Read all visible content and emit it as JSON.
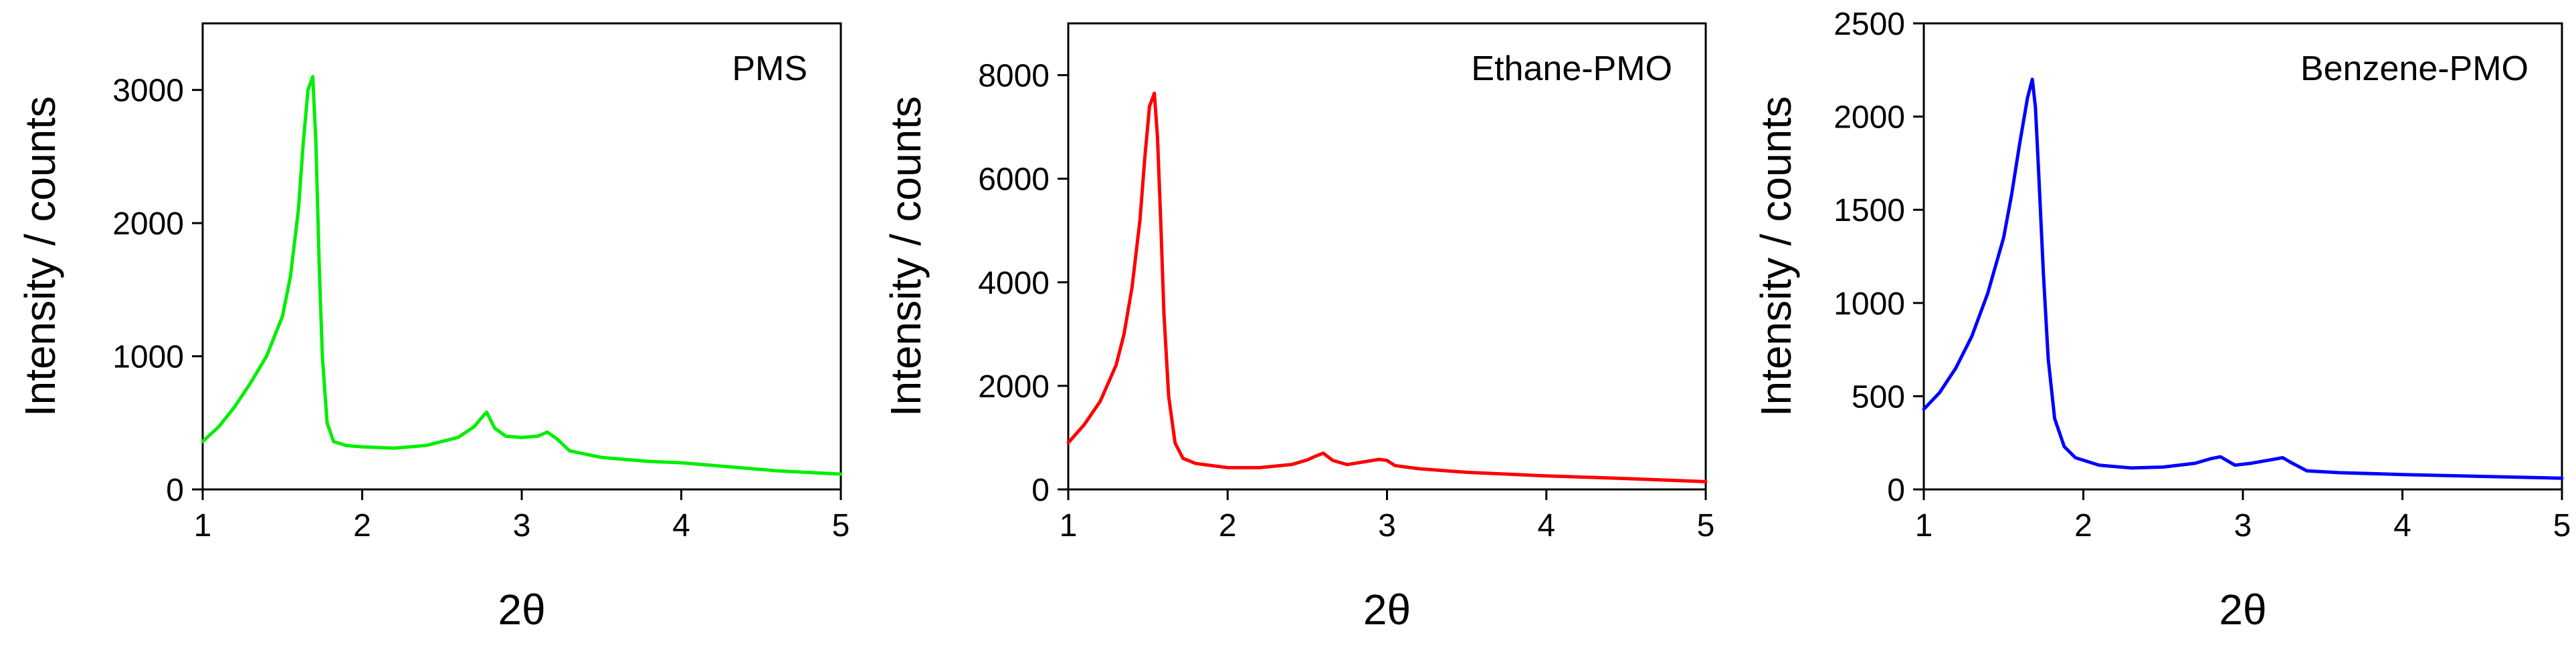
{
  "chart_data": [
    {
      "type": "line",
      "title": "",
      "xlabel": "2θ",
      "ylabel": "Intensity / counts",
      "xlim": [
        1,
        5
      ],
      "ylim": [
        0,
        3500
      ],
      "xticks": [
        1,
        2,
        3,
        4,
        5
      ],
      "yticks": [
        0,
        1000,
        2000,
        3000
      ],
      "grid": false,
      "annotation": "PMS",
      "color": "#00ee00",
      "series": [
        {
          "x": [
            1.0,
            1.1,
            1.2,
            1.3,
            1.4,
            1.5,
            1.55,
            1.6,
            1.63,
            1.66,
            1.69,
            1.71,
            1.73,
            1.75,
            1.78,
            1.82,
            1.9,
            2.0,
            2.2,
            2.4,
            2.6,
            2.7,
            2.75,
            2.78,
            2.83,
            2.9,
            3.0,
            3.1,
            3.16,
            3.22,
            3.3,
            3.5,
            3.8,
            4.0,
            4.3,
            4.6,
            5.0
          ],
          "y": [
            360,
            470,
            620,
            800,
            1000,
            1300,
            1600,
            2100,
            2600,
            3000,
            3100,
            2600,
            1700,
            1000,
            500,
            360,
            330,
            320,
            310,
            330,
            390,
            470,
            540,
            580,
            460,
            400,
            390,
            400,
            430,
            380,
            290,
            240,
            210,
            200,
            170,
            140,
            115
          ]
        }
      ]
    },
    {
      "type": "line",
      "title": "",
      "xlabel": "2θ",
      "ylabel": "Intensity / counts",
      "xlim": [
        1,
        5
      ],
      "ylim": [
        0,
        9000
      ],
      "xticks": [
        1,
        2,
        3,
        4,
        5
      ],
      "yticks": [
        0,
        2000,
        4000,
        6000,
        8000
      ],
      "grid": false,
      "annotation": "Ethane-PMO",
      "color": "#ff0000",
      "series": [
        {
          "x": [
            1.0,
            1.1,
            1.2,
            1.3,
            1.35,
            1.4,
            1.45,
            1.48,
            1.51,
            1.54,
            1.56,
            1.58,
            1.6,
            1.63,
            1.67,
            1.72,
            1.8,
            2.0,
            2.2,
            2.4,
            2.5,
            2.55,
            2.6,
            2.66,
            2.75,
            2.85,
            2.95,
            3.0,
            3.05,
            3.2,
            3.5,
            4.0,
            4.5,
            5.0
          ],
          "y": [
            900,
            1250,
            1700,
            2400,
            3000,
            3900,
            5200,
            6400,
            7400,
            7650,
            6800,
            5200,
            3400,
            1800,
            900,
            600,
            500,
            420,
            420,
            480,
            570,
            640,
            700,
            560,
            480,
            530,
            580,
            560,
            460,
            400,
            330,
            260,
            210,
            150
          ]
        }
      ]
    },
    {
      "type": "line",
      "title": "",
      "xlabel": "2θ",
      "ylabel": "Intensity / counts",
      "xlim": [
        1,
        5
      ],
      "ylim": [
        0,
        2500
      ],
      "xticks": [
        1,
        2,
        3,
        4,
        5
      ],
      "yticks": [
        0,
        500,
        1000,
        1500,
        2000,
        2500
      ],
      "grid": false,
      "annotation": "Benzene-PMO",
      "color": "#0000ff",
      "series": [
        {
          "x": [
            1.0,
            1.1,
            1.2,
            1.3,
            1.4,
            1.5,
            1.55,
            1.6,
            1.65,
            1.68,
            1.7,
            1.72,
            1.75,
            1.78,
            1.82,
            1.88,
            1.95,
            2.1,
            2.3,
            2.5,
            2.7,
            2.8,
            2.86,
            2.95,
            3.05,
            3.15,
            3.25,
            3.3,
            3.4,
            3.6,
            4.0,
            4.5,
            5.0
          ],
          "y": [
            430,
            520,
            650,
            820,
            1050,
            1350,
            1580,
            1850,
            2100,
            2200,
            2050,
            1700,
            1150,
            700,
            380,
            230,
            170,
            130,
            115,
            120,
            140,
            165,
            175,
            130,
            140,
            155,
            170,
            145,
            100,
            90,
            80,
            70,
            60
          ]
        }
      ]
    }
  ]
}
